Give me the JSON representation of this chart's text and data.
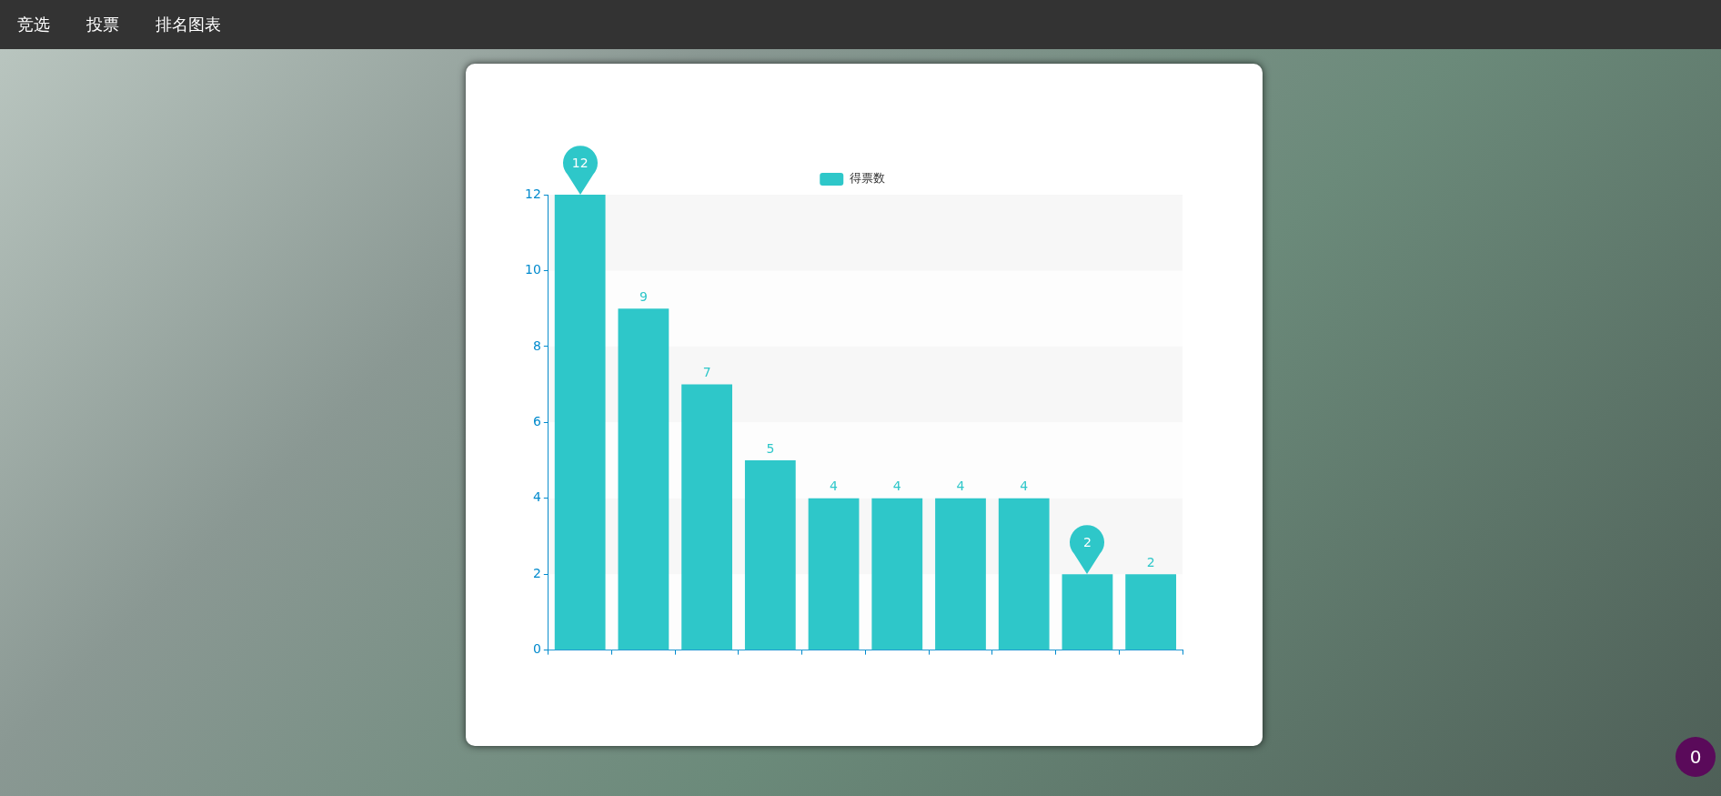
{
  "chart_data": {
    "type": "bar",
    "categories": [
      null,
      null,
      null,
      null,
      null,
      null,
      null,
      null,
      null,
      null
    ],
    "series": [
      {
        "name": "得票数",
        "color": "#2ec7c9",
        "values": [
          12,
          9,
          7,
          5,
          4,
          4,
          4,
          4,
          2,
          2
        ]
      }
    ],
    "ylim": [
      0,
      12
    ],
    "yticks": [
      0,
      2,
      4,
      6,
      8,
      10,
      12
    ],
    "legend": "top",
    "data_labels": true,
    "annotations": [
      "竞选",
      "投票",
      "排名图表",
      "0"
    ]
  }
}
